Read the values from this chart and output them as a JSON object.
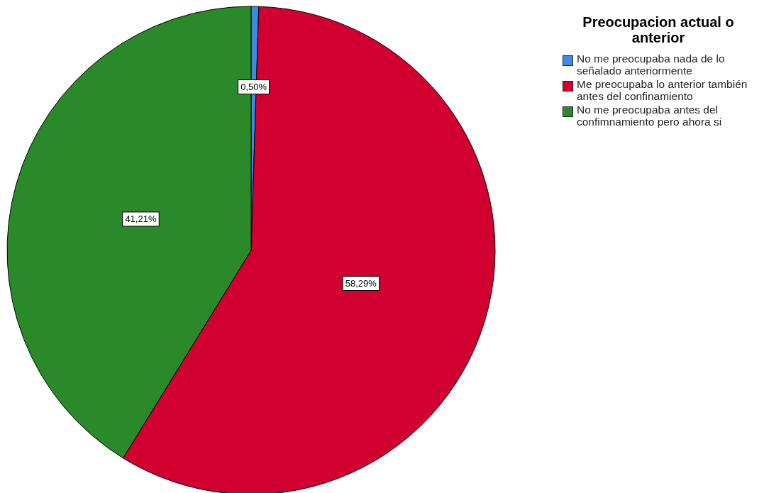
{
  "chart_data": {
    "type": "pie",
    "legend_title": "Preocupacion actual o anterior",
    "categories": [
      "No me preocupaba nada de lo señalado anteriormente",
      "Me preocupaba lo anterior también antes del confinamiento",
      "No me preocupaba antes del confimnamiento pero ahora si"
    ],
    "values": [
      0.5,
      58.29,
      41.21
    ],
    "colors": [
      "#3e8ae8",
      "#d10030",
      "#2a8a2a"
    ],
    "value_labels": [
      "0,50%",
      "58,29%",
      "41,21%"
    ],
    "legend": "top right"
  }
}
